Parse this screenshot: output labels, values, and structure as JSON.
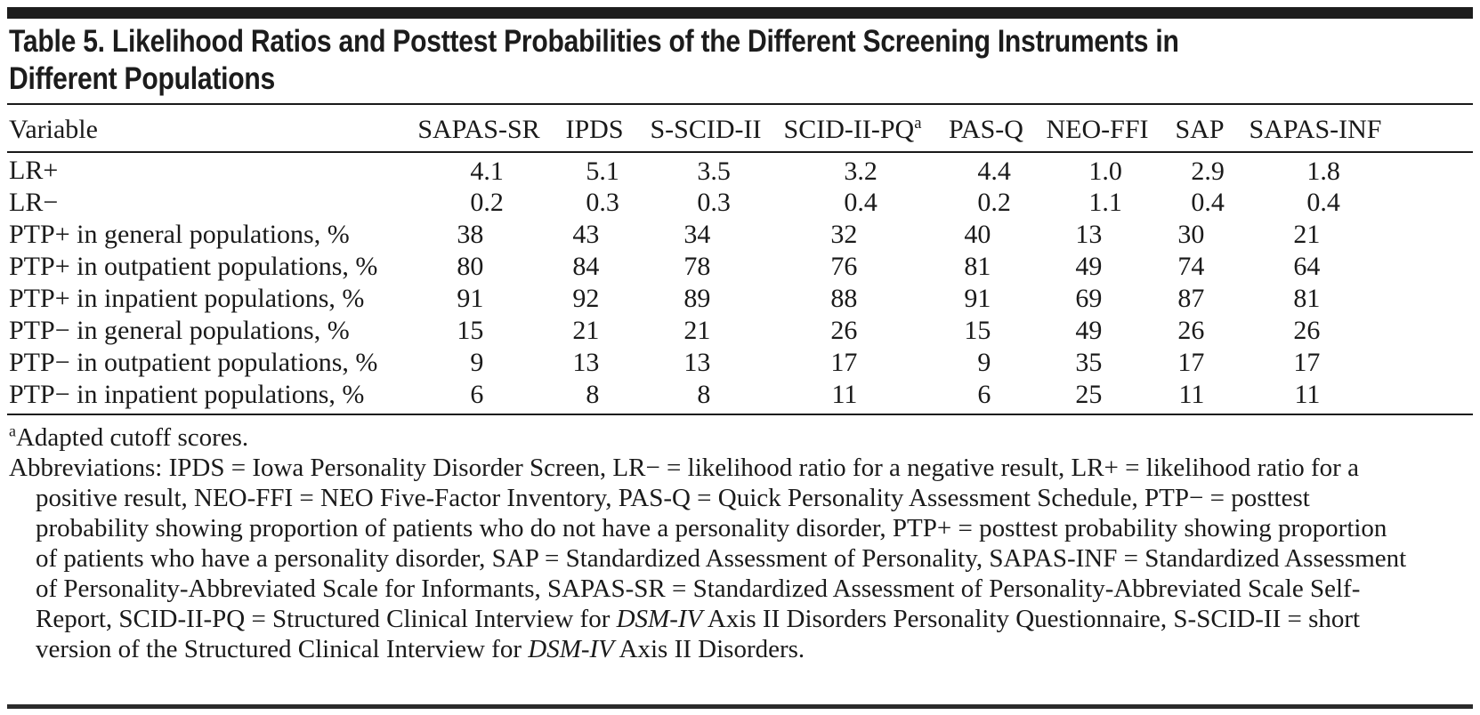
{
  "header": {
    "title_lines": [
      "Table 5. Likelihood Ratios and Posttest Probabilities of the Different Screening Instruments in",
      "Different Populations"
    ]
  },
  "table": {
    "columns": [
      {
        "label": "Variable",
        "sup": ""
      },
      {
        "label": "SAPAS-SR",
        "sup": ""
      },
      {
        "label": "IPDS",
        "sup": ""
      },
      {
        "label": "S-SCID-II",
        "sup": ""
      },
      {
        "label": "SCID-II-PQ",
        "sup": "a"
      },
      {
        "label": "PAS-Q",
        "sup": ""
      },
      {
        "label": "NEO-FFI",
        "sup": ""
      },
      {
        "label": "SAP",
        "sup": ""
      },
      {
        "label": "SAPAS-INF",
        "sup": ""
      }
    ],
    "rows": [
      {
        "label": "LR+",
        "values": [
          "4.1",
          "5.1",
          "3.5",
          "3.2",
          "4.4",
          "1.0",
          "2.9",
          "1.8"
        ]
      },
      {
        "label": "LR−",
        "values": [
          "0.2",
          "0.3",
          "0.3",
          "0.4",
          "0.2",
          "1.1",
          "0.4",
          "0.4"
        ]
      },
      {
        "label": "PTP+ in general populations, %",
        "values": [
          "38",
          "43",
          "34",
          "32",
          "40",
          "13",
          "30",
          "21"
        ]
      },
      {
        "label": "PTP+ in outpatient populations, %",
        "values": [
          "80",
          "84",
          "78",
          "76",
          "81",
          "49",
          "74",
          "64"
        ]
      },
      {
        "label": "PTP+ in inpatient populations, %",
        "values": [
          "91",
          "92",
          "89",
          "88",
          "91",
          "69",
          "87",
          "81"
        ]
      },
      {
        "label": "PTP− in general populations, %",
        "values": [
          "15",
          "21",
          "21",
          "26",
          "15",
          "49",
          "26",
          "26"
        ]
      },
      {
        "label": "PTP− in outpatient populations, %",
        "values": [
          "9",
          "13",
          "13",
          "17",
          "9",
          "35",
          "17",
          "17"
        ]
      },
      {
        "label": "PTP− in inpatient populations, %",
        "values": [
          "6",
          "8",
          "8",
          "11",
          "6",
          "25",
          "11",
          "11"
        ]
      }
    ]
  },
  "footnotes": {
    "cutoff_marker": "a",
    "cutoff_text": "Adapted cutoff scores.",
    "abbreviations_segments": [
      {
        "text": "Abbreviations: IPDS = Iowa Personality Disorder Screen, LR− = likelihood ratio for a negative result, LR+ = likelihood ratio for a positive result, NEO-FFI = NEO Five-Factor Inventory, PAS-Q = Quick Personality Assessment Schedule, PTP− = posttest probability showing proportion of patients who do not have a personality disorder, PTP+ = posttest probability showing proportion of patients who have a personality disorder, SAP = Standardized Assessment of Personality, SAPAS-INF = Standardized Assessment of Personality-Abbreviated Scale for Informants, SAPAS-SR = Standardized Assessment of Personality-Abbreviated Scale Self-Report, SCID-II-PQ = Structured Clinical Interview for ",
        "italic": false
      },
      {
        "text": "DSM-IV",
        "italic": true
      },
      {
        "text": " Axis II Disorders Personality Questionnaire, S-SCID-II = short version of the Structured Clinical Interview for ",
        "italic": false
      },
      {
        "text": "DSM-IV",
        "italic": true
      },
      {
        "text": " Axis II Disorders.",
        "italic": false
      }
    ]
  }
}
